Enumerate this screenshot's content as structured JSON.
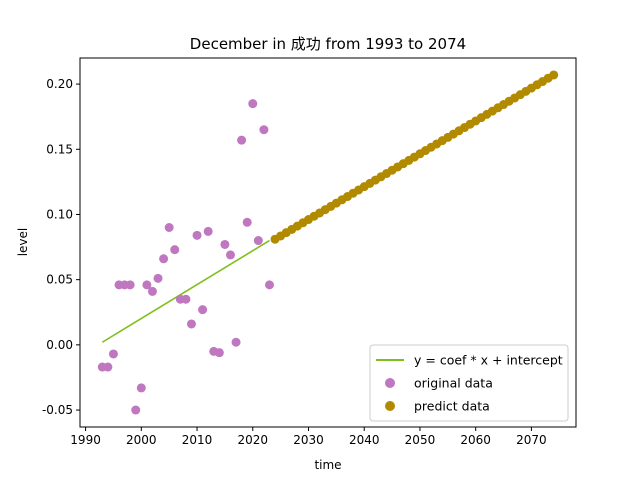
{
  "chart_data": {
    "type": "scatter",
    "title": "December in 成功 from 1993 to 2074",
    "xlabel": "time",
    "ylabel": "level",
    "xlim": [
      1989,
      2078
    ],
    "ylim": [
      -0.063,
      0.22
    ],
    "xticks": [
      1990,
      2000,
      2010,
      2020,
      2030,
      2040,
      2050,
      2060,
      2070
    ],
    "yticks": [
      -0.05,
      0.0,
      0.05,
      0.1,
      0.15,
      0.2
    ],
    "ytick_labels": [
      "-0.05",
      "0.00",
      "0.05",
      "0.10",
      "0.15",
      "0.20"
    ],
    "grid": false,
    "legend_position": "lower-right",
    "fit_line": {
      "name": "y = coef * x + intercept",
      "color": "#7fbf1a",
      "x": [
        1993,
        2023
      ],
      "y": [
        0.002,
        0.08
      ]
    },
    "series": [
      {
        "name": "original data",
        "color": "#bf77bf",
        "points": [
          [
            1993,
            -0.017
          ],
          [
            1994,
            -0.017
          ],
          [
            1995,
            -0.007
          ],
          [
            1996,
            0.046
          ],
          [
            1997,
            0.046
          ],
          [
            1998,
            0.046
          ],
          [
            1999,
            -0.05
          ],
          [
            2000,
            -0.033
          ],
          [
            2001,
            0.046
          ],
          [
            2002,
            0.041
          ],
          [
            2003,
            0.051
          ],
          [
            2004,
            0.066
          ],
          [
            2005,
            0.09
          ],
          [
            2006,
            0.073
          ],
          [
            2007,
            0.035
          ],
          [
            2008,
            0.035
          ],
          [
            2009,
            0.016
          ],
          [
            2010,
            0.084
          ],
          [
            2011,
            0.027
          ],
          [
            2012,
            0.087
          ],
          [
            2013,
            -0.005
          ],
          [
            2014,
            -0.006
          ],
          [
            2015,
            0.077
          ],
          [
            2016,
            0.069
          ],
          [
            2017,
            0.002
          ],
          [
            2018,
            0.157
          ],
          [
            2019,
            0.094
          ],
          [
            2020,
            0.185
          ],
          [
            2021,
            0.08
          ],
          [
            2022,
            0.165
          ],
          [
            2023,
            0.046
          ]
        ]
      },
      {
        "name": "predict data",
        "color": "#b28a00",
        "x_start": 2024,
        "x_end": 2074,
        "y_start": 0.081,
        "y_end": 0.207
      }
    ]
  }
}
